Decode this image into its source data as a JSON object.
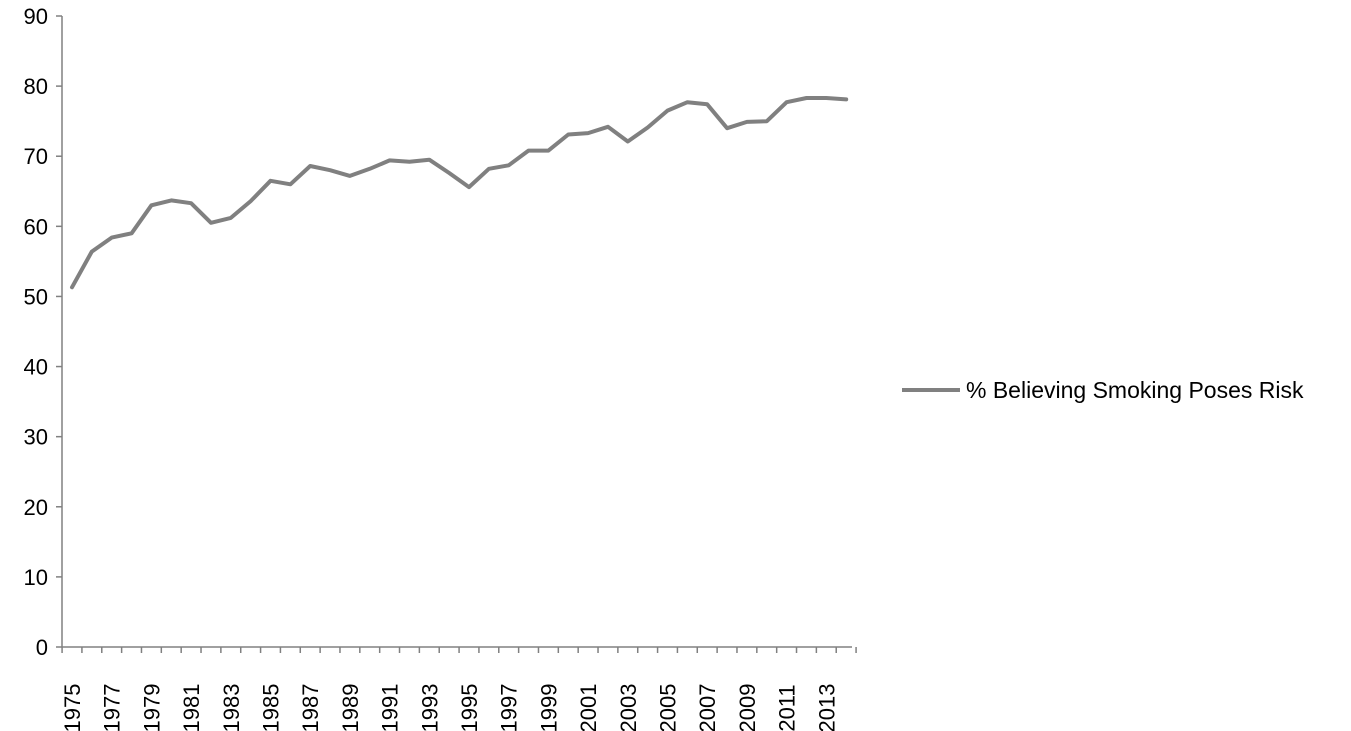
{
  "chart_data": {
    "type": "line",
    "title": "",
    "xlabel": "",
    "ylabel": "",
    "ylim": [
      0,
      90
    ],
    "yticks": [
      0,
      10,
      20,
      30,
      40,
      50,
      60,
      70,
      80,
      90
    ],
    "xlim": [
      1975,
      2014
    ],
    "xtick_labels": [
      "1975",
      "1977",
      "1979",
      "1981",
      "1983",
      "1985",
      "1987",
      "1989",
      "1991",
      "1993",
      "1995",
      "1997",
      "1999",
      "2001",
      "2003",
      "2005",
      "2007",
      "2009",
      "2011",
      "2013"
    ],
    "grid": false,
    "legend_position": "right",
    "series_color": "#808080",
    "series": [
      {
        "name": "% Believing Smoking Poses Risk",
        "x": [
          1975,
          1976,
          1977,
          1978,
          1979,
          1980,
          1981,
          1982,
          1983,
          1984,
          1985,
          1986,
          1987,
          1988,
          1989,
          1990,
          1991,
          1992,
          1993,
          1994,
          1995,
          1996,
          1997,
          1998,
          1999,
          2000,
          2001,
          2002,
          2003,
          2004,
          2005,
          2006,
          2007,
          2008,
          2009,
          2010,
          2011,
          2012,
          2013,
          2014
        ],
        "values": [
          51.3,
          56.4,
          58.4,
          59.0,
          63.0,
          63.7,
          63.3,
          60.5,
          61.2,
          63.6,
          66.5,
          66.0,
          68.6,
          68.0,
          67.2,
          68.2,
          69.4,
          69.2,
          69.5,
          67.6,
          65.6,
          68.2,
          68.7,
          70.8,
          70.8,
          73.1,
          73.3,
          74.2,
          72.1,
          74.1,
          76.5,
          77.7,
          77.4,
          74.0,
          74.9,
          75.0,
          77.7,
          78.3,
          78.3,
          78.1
        ]
      }
    ]
  }
}
